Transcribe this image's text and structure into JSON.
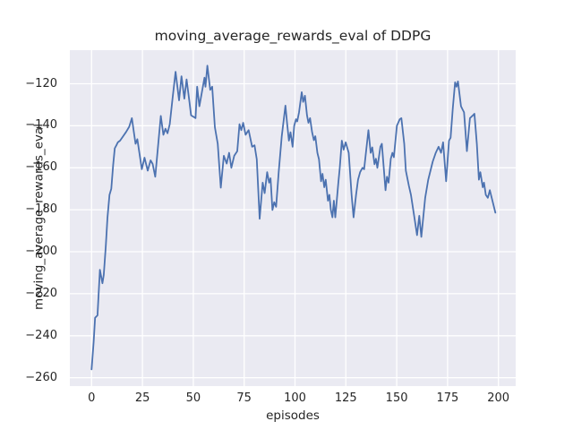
{
  "figure": {
    "background": "#ffffff",
    "plot_background": "#eaeaf2",
    "grid_color": "#ffffff",
    "text_color": "#262626"
  },
  "chart_data": {
    "type": "line",
    "title": "moving_average_rewards_eval of DDPG",
    "xlabel": "episodes",
    "ylabel": "moving_average_rewards_eval",
    "grid": true,
    "legend": false,
    "xlim": [
      -10.7,
      208.5
    ],
    "ylim": [
      -264,
      -104
    ],
    "xticks": [
      0,
      25,
      50,
      75,
      100,
      125,
      150,
      175,
      200
    ],
    "yticks": [
      -120,
      -140,
      -160,
      -180,
      -200,
      -220,
      -240,
      -260
    ],
    "line_color": "#4c72b0",
    "line_width": 1.8,
    "series": [
      {
        "name": "moving_average_rewards_eval",
        "x": [
          0,
          1,
          1.7,
          2.9,
          4.1,
          5.3,
          6,
          7,
          7.8,
          8.8,
          9.7,
          10.6,
          11.4,
          12.2,
          12.9,
          14,
          15.5,
          17,
          18.5,
          19.8,
          21,
          21.6,
          22.5,
          24.7,
          26,
          27.6,
          29,
          30,
          31.3,
          34,
          35.3,
          36.3,
          37.3,
          38.4,
          39.8,
          41.3,
          43,
          44.2,
          45.6,
          46.7,
          48.1,
          48.9,
          50,
          51.1,
          51.9,
          53,
          55.5,
          56,
          56.9,
          58.3,
          59.3,
          60.6,
          62,
          63.5,
          65,
          66.4,
          67.6,
          68.7,
          70.1,
          71.6,
          72.7,
          73.6,
          74.5,
          75.7,
          77.2,
          78.9,
          80.1,
          81.2,
          82.6,
          84.1,
          85.1,
          86.3,
          87.3,
          88,
          88.9,
          89.8,
          90.7,
          92,
          93.5,
          95.3,
          96.1,
          97,
          97.8,
          98.8,
          99.6,
          100.5,
          101.1,
          102,
          103.3,
          104,
          104.9,
          105.9,
          106.6,
          107.4,
          108.4,
          109.3,
          110,
          111,
          111.8,
          112.8,
          113.5,
          114.4,
          115.1,
          116.2,
          116.9,
          117.6,
          118.4,
          119.1,
          119.8,
          121.3,
          122,
          123,
          123.9,
          124.9,
          126.4,
          127.8,
          128.8,
          130,
          131,
          132,
          133.2,
          134,
          136.1,
          137.2,
          138,
          139.1,
          139.8,
          140.5,
          142,
          142.7,
          144.5,
          145.2,
          146,
          147.1,
          147.9,
          148.6,
          150.1,
          151.5,
          152.3,
          153.7,
          154.5,
          156,
          157,
          158.9,
          160,
          161.1,
          162.1,
          164,
          165.5,
          167.7,
          169.2,
          170.6,
          171.8,
          172.8,
          174.3,
          175.7,
          176.5,
          177.6,
          178.7,
          179.4,
          180.1,
          181.6,
          182.3,
          183.1,
          184.5,
          186,
          187.5,
          188.2,
          189.4,
          190.4,
          191.1,
          192.3,
          192.9,
          193.8,
          194.8,
          195.8,
          198.5
        ],
        "y": [
          -256,
          -243,
          -231.5,
          -230.3,
          -208.6,
          -215,
          -211,
          -197.1,
          -184,
          -172.9,
          -170,
          -158.6,
          -150.7,
          -149.3,
          -147.9,
          -147.1,
          -145,
          -142.9,
          -140.5,
          -136.4,
          -144.5,
          -148.6,
          -146.4,
          -160.7,
          -155.2,
          -161.4,
          -156.5,
          -158.2,
          -164.3,
          -135.3,
          -144.3,
          -141.4,
          -143.6,
          -139.3,
          -127.1,
          -114.3,
          -127.9,
          -116.4,
          -127.1,
          -117.9,
          -128.6,
          -135,
          -135.7,
          -136.4,
          -121.4,
          -130.7,
          -117.1,
          -121.4,
          -111.4,
          -122.9,
          -121.4,
          -140.7,
          -148.6,
          -169.5,
          -154.3,
          -158,
          -152.9,
          -160,
          -154.3,
          -152.1,
          -139.3,
          -142.1,
          -138.6,
          -144.3,
          -142.1,
          -150,
          -149.3,
          -156,
          -184.3,
          -167.1,
          -172.1,
          -162.1,
          -167.1,
          -165,
          -180.1,
          -176.4,
          -178.6,
          -162,
          -145,
          -130.4,
          -138.6,
          -147.1,
          -143.1,
          -150,
          -140,
          -136.9,
          -137.9,
          -133.6,
          -124,
          -128.6,
          -125.7,
          -135,
          -138.6,
          -136.4,
          -143.1,
          -146.9,
          -145,
          -152.9,
          -156,
          -166.4,
          -162.9,
          -169.3,
          -165.7,
          -175.7,
          -172.9,
          -180,
          -183.6,
          -175.7,
          -183.6,
          -167.1,
          -160,
          -147.1,
          -151.4,
          -147.9,
          -152.9,
          -172.9,
          -183.6,
          -172.9,
          -165.7,
          -162.1,
          -160,
          -160.7,
          -142.1,
          -152.9,
          -150.3,
          -158.3,
          -155.7,
          -160,
          -150,
          -148.6,
          -170.7,
          -164.3,
          -167.1,
          -155.7,
          -152.9,
          -155,
          -140,
          -136.9,
          -136.4,
          -148.6,
          -161.4,
          -168.6,
          -172.9,
          -185,
          -192.1,
          -182.9,
          -192.9,
          -174.3,
          -165.7,
          -157.1,
          -152.9,
          -150,
          -152.9,
          -147.9,
          -166.4,
          -147.1,
          -145.7,
          -131.4,
          -119.3,
          -121.4,
          -118.9,
          -130.7,
          -132.1,
          -133.6,
          -152.1,
          -136.4,
          -135,
          -134.3,
          -148.6,
          -165.7,
          -162.1,
          -169.3,
          -167.1,
          -172.9,
          -174.3,
          -170.7,
          -181.4
        ]
      }
    ]
  }
}
